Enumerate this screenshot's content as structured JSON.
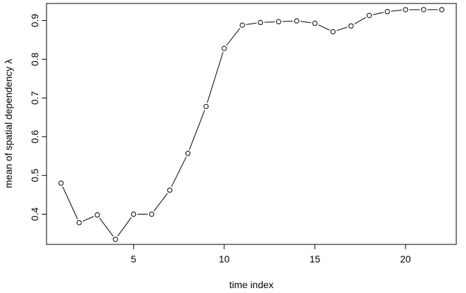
{
  "chart_data": {
    "type": "line",
    "title": "",
    "xlabel": "time index",
    "ylabel": "mean of spatial dependency λ",
    "xlim": [
      0.2,
      22.8
    ],
    "ylim": [
      0.322,
      0.944
    ],
    "x_ticks": [
      5,
      10,
      15,
      20
    ],
    "y_ticks": [
      0.4,
      0.5,
      0.6,
      0.7,
      0.8,
      0.9
    ],
    "x_tick_labels": [
      "5",
      "10",
      "15",
      "20"
    ],
    "y_tick_labels": [
      "0.4",
      "0.5",
      "0.6",
      "0.7",
      "0.8",
      "0.9"
    ],
    "grid": false,
    "legend": "none",
    "marker": "open-circle",
    "series": [
      {
        "x": [
          1,
          2,
          3,
          4,
          5,
          6,
          7,
          8,
          9,
          10,
          11,
          12,
          13,
          14,
          15,
          16,
          17,
          18,
          19,
          20,
          21,
          22
        ],
        "values": [
          0.48,
          0.378,
          0.398,
          0.335,
          0.4,
          0.4,
          0.462,
          0.557,
          0.678,
          0.828,
          0.888,
          0.895,
          0.897,
          0.899,
          0.893,
          0.871,
          0.886,
          0.913,
          0.923,
          0.928,
          0.928,
          0.928
        ]
      }
    ]
  }
}
